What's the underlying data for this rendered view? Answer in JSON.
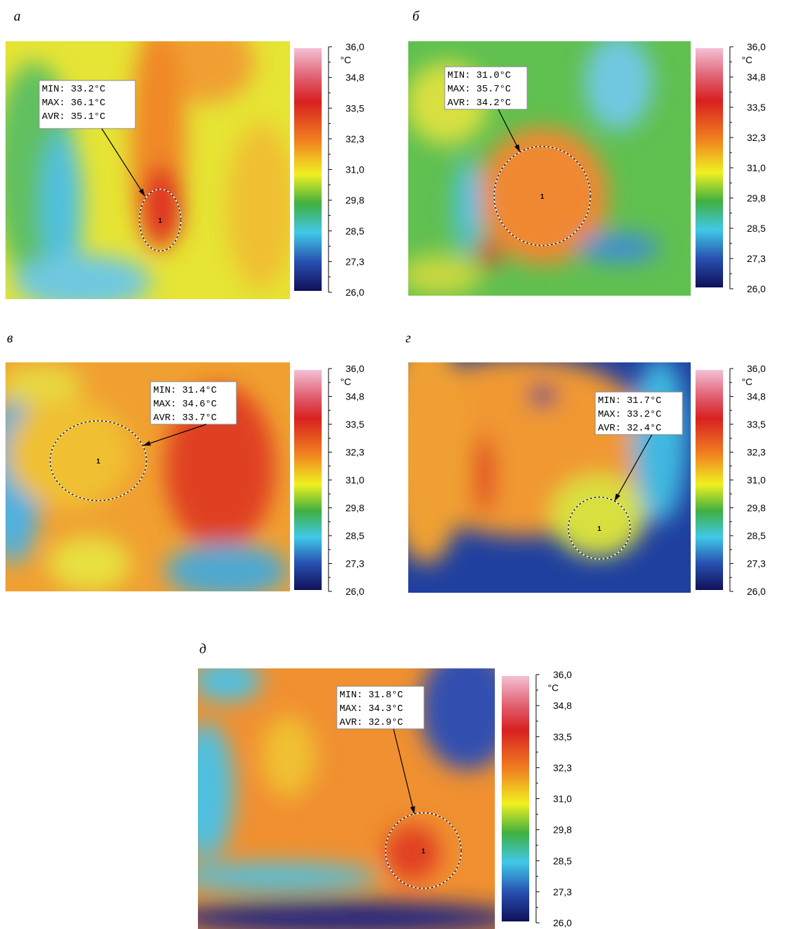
{
  "panels": [
    {
      "letter": "а",
      "readout": [
        "MIN: 33.2°C",
        "MAX: 36.1°C",
        "AVR: 35.1°C"
      ],
      "spot": "1",
      "unit": "°C",
      "scale": [
        "36,0",
        "34,8",
        "33,5",
        "32,3",
        "31,0",
        "29,8",
        "28,5",
        "27,3",
        "26,0"
      ]
    },
    {
      "letter": "б",
      "readout": [
        "MIN: 31.0°C",
        "MAX: 35.7°C",
        "AVR: 34.2°C"
      ],
      "spot": "1",
      "unit": "°C",
      "scale": [
        "36,0",
        "34,8",
        "33,5",
        "32,3",
        "31,0",
        "29,8",
        "28,5",
        "27,3",
        "26,0"
      ]
    },
    {
      "letter": "в",
      "readout": [
        "MIN: 31.4°C",
        "MAX: 34.6°C",
        "AVR: 33.7°C"
      ],
      "spot": "1",
      "unit": "°C",
      "scale": [
        "36,0",
        "34,8",
        "33,5",
        "32,3",
        "31,0",
        "29,8",
        "28,5",
        "27,3",
        "26,0"
      ]
    },
    {
      "letter": "г",
      "readout": [
        "MIN: 31.7°C",
        "MAX: 33.2°C",
        "AVR: 32.4°C"
      ],
      "spot": "1",
      "unit": "°C",
      "scale": [
        "36,0",
        "34,8",
        "33,5",
        "32,3",
        "31,0",
        "29,8",
        "28,5",
        "27,3",
        "26,0"
      ]
    },
    {
      "letter": "д",
      "readout": [
        "MIN: 31.8°C",
        "MAX: 34.3°C",
        "AVR: 32.9°C"
      ],
      "spot": "1",
      "unit": "°C",
      "scale": [
        "36,0",
        "34,8",
        "33,5",
        "32,3",
        "31,0",
        "29,8",
        "28,5",
        "27,3",
        "26,0"
      ]
    }
  ]
}
